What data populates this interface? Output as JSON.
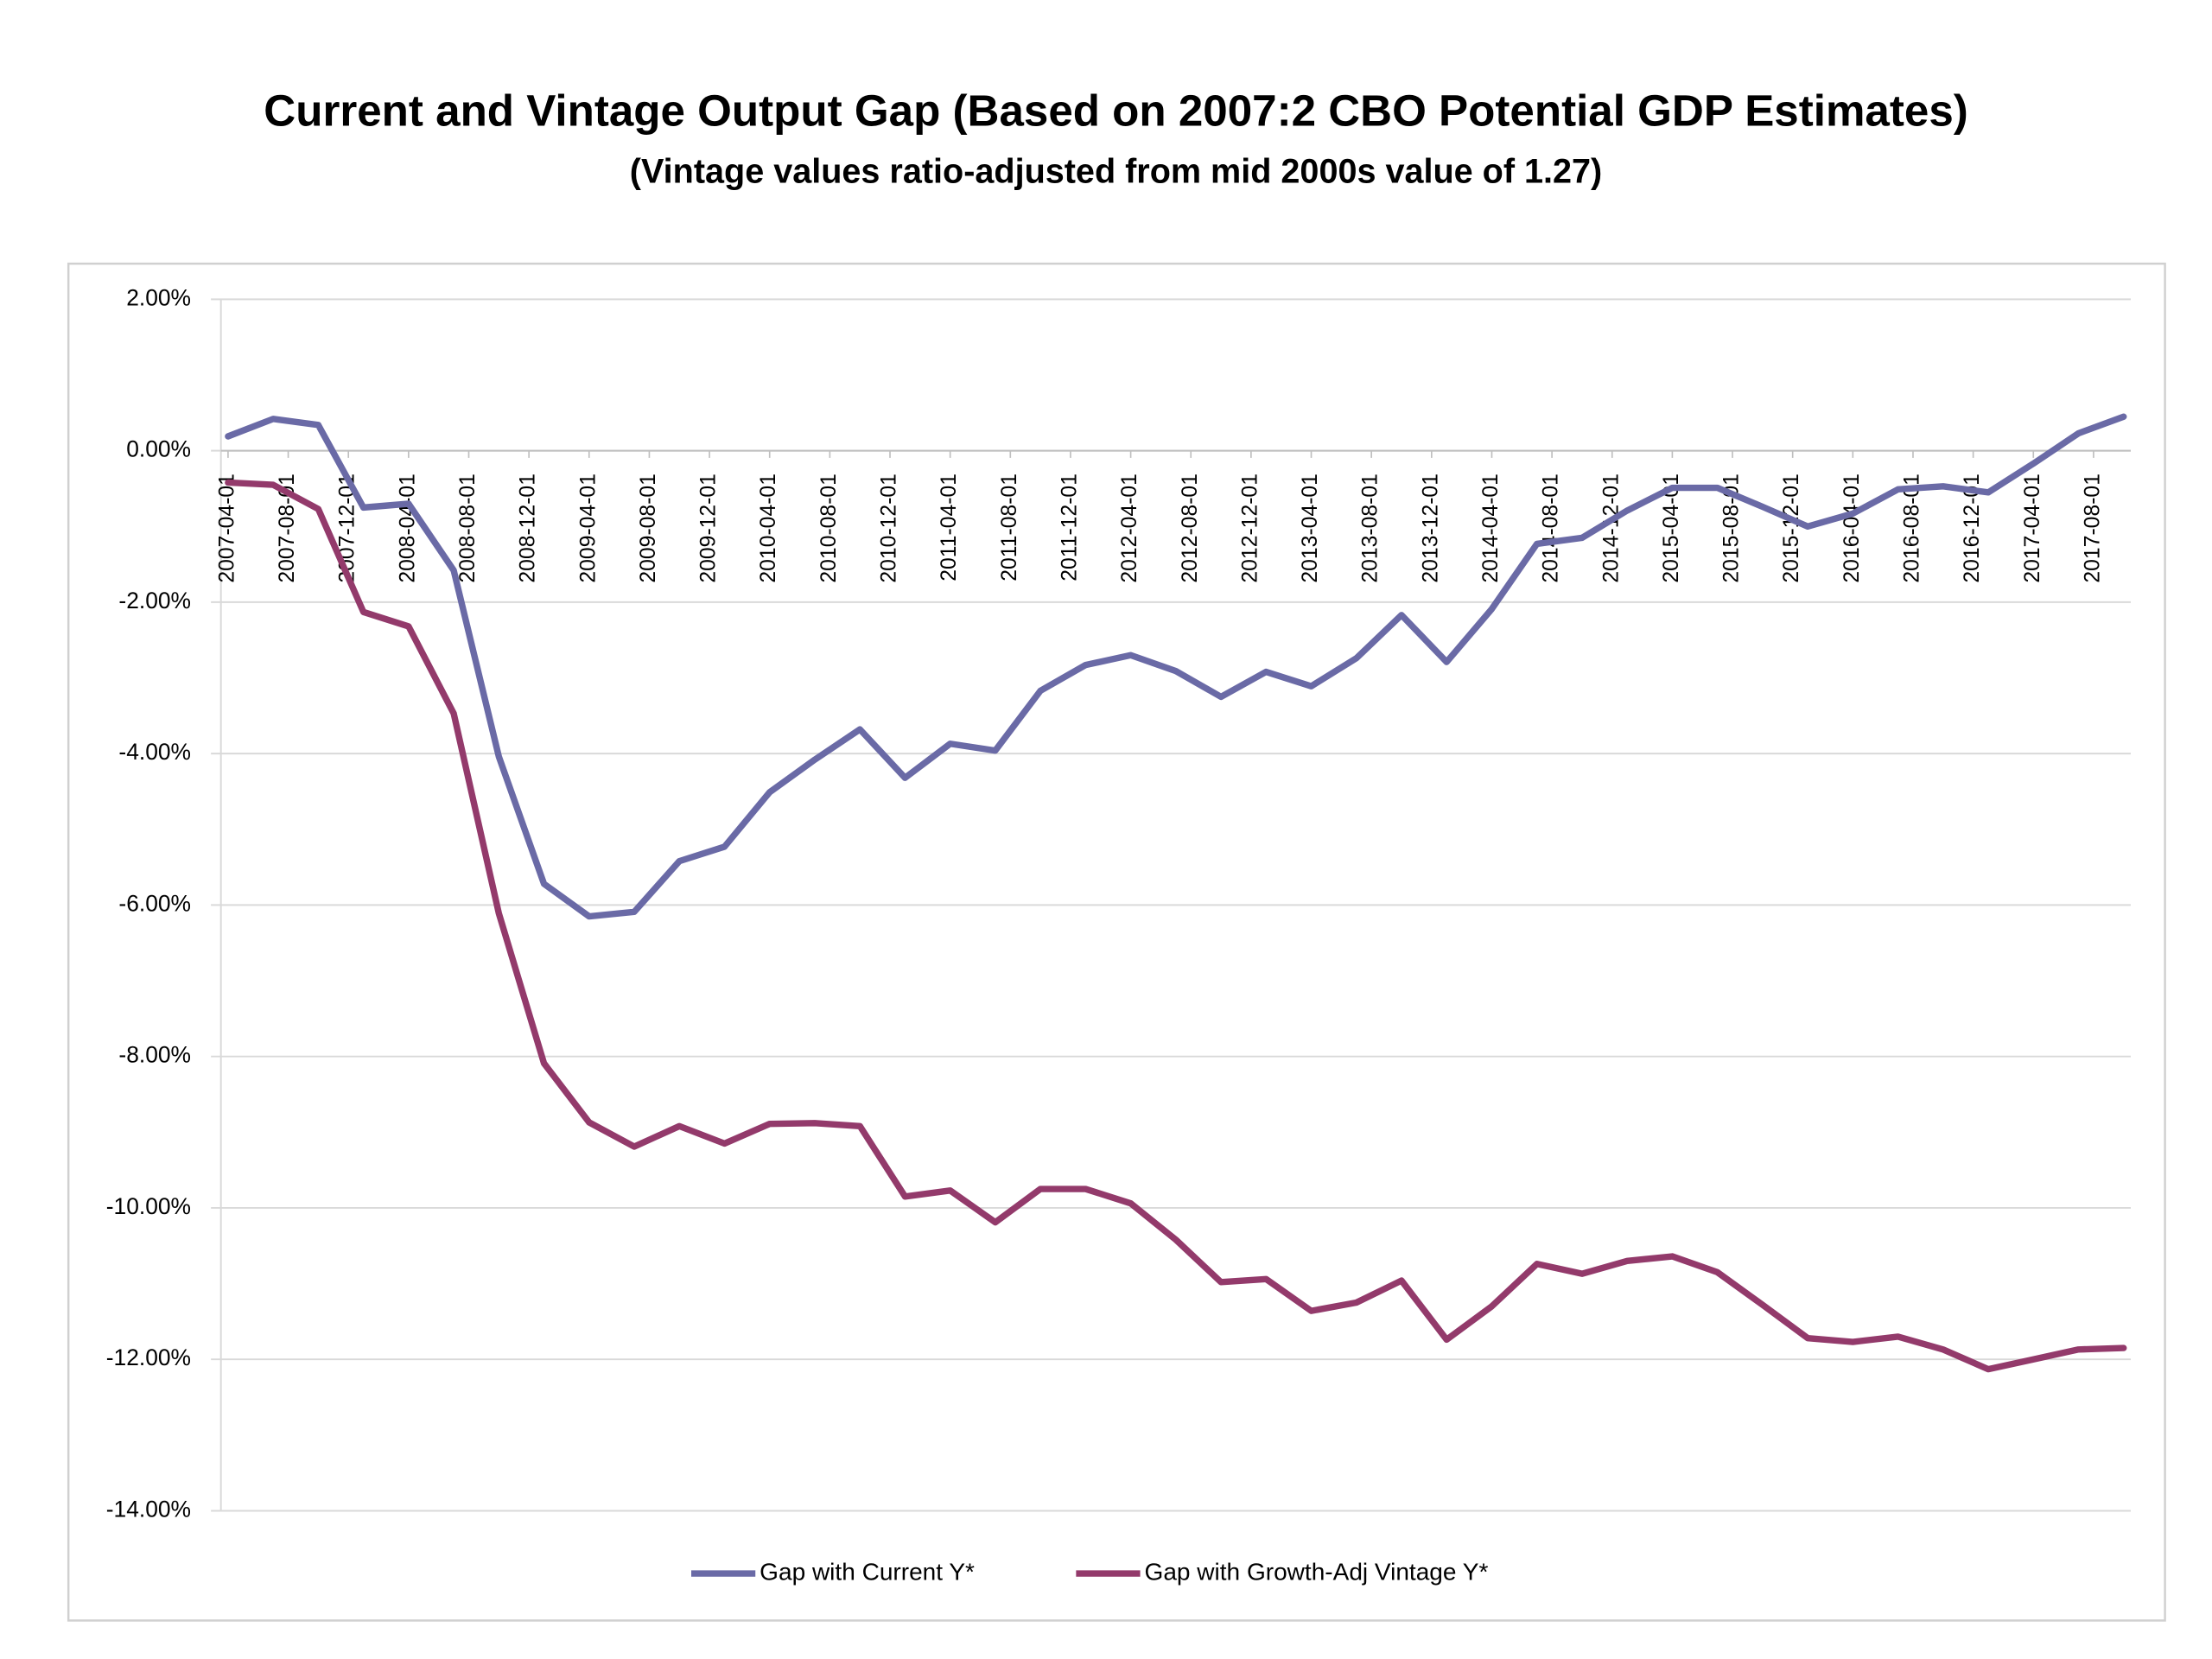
{
  "chart_data": {
    "type": "line",
    "title": "Current and Vintage Output Gap (Based on 2007:2 CBO Potential GDP Estimates)",
    "subtitle": "(Vintage values ratio-adjusted from mid 2000s value of 1.27)",
    "x": [
      "2007-04-01",
      "2007-07-01",
      "2007-10-01",
      "2008-01-01",
      "2008-04-01",
      "2008-07-01",
      "2008-10-01",
      "2009-01-01",
      "2009-04-01",
      "2009-07-01",
      "2009-10-01",
      "2010-01-01",
      "2010-04-01",
      "2010-07-01",
      "2010-10-01",
      "2011-01-01",
      "2011-04-01",
      "2011-07-01",
      "2011-10-01",
      "2012-01-01",
      "2012-04-01",
      "2012-07-01",
      "2012-10-01",
      "2013-01-01",
      "2013-04-01",
      "2013-07-01",
      "2013-10-01",
      "2014-01-01",
      "2014-04-01",
      "2014-07-01",
      "2014-10-01",
      "2015-01-01",
      "2015-04-01",
      "2015-07-01",
      "2015-10-01",
      "2016-01-01",
      "2016-04-01",
      "2016-07-01",
      "2016-10-01",
      "2017-01-01",
      "2017-04-01",
      "2017-07-01",
      "2017-10-01"
    ],
    "xlim": [
      "2007-04-01",
      "2017-10-01"
    ],
    "xticks": [
      "2007-04-01",
      "2007-08-01",
      "2007-12-01",
      "2008-04-01",
      "2008-08-01",
      "2008-12-01",
      "2009-04-01",
      "2009-08-01",
      "2009-12-01",
      "2010-04-01",
      "2010-08-01",
      "2010-12-01",
      "2011-04-01",
      "2011-08-01",
      "2011-12-01",
      "2012-04-01",
      "2012-08-01",
      "2012-12-01",
      "2013-04-01",
      "2013-08-01",
      "2013-12-01",
      "2014-04-01",
      "2014-08-01",
      "2014-12-01",
      "2015-04-01",
      "2015-08-01",
      "2015-12-01",
      "2016-04-01",
      "2016-08-01",
      "2016-12-01",
      "2017-04-01",
      "2017-08-01"
    ],
    "ylim": [
      -14,
      2
    ],
    "yticks": [
      {
        "value": 2,
        "label": "2.00%"
      },
      {
        "value": 0,
        "label": "0.00%"
      },
      {
        "value": -2,
        "label": "-2.00%"
      },
      {
        "value": -4,
        "label": "-4.00%"
      },
      {
        "value": -6,
        "label": "-6.00%"
      },
      {
        "value": -8,
        "label": "-8.00%"
      },
      {
        "value": -10,
        "label": "-10.00%"
      },
      {
        "value": -12,
        "label": "-12.00%"
      },
      {
        "value": -14,
        "label": "-14.00%"
      }
    ],
    "grid": true,
    "legend": "bottom",
    "series": [
      {
        "name": "Gap with Current Y*",
        "color": "#6a6aa6",
        "values": [
          0.19,
          0.42,
          0.34,
          -0.75,
          -0.7,
          -1.58,
          -4.04,
          -5.72,
          -6.15,
          -6.09,
          -5.42,
          -5.23,
          -4.51,
          -4.08,
          -3.68,
          -4.32,
          -3.87,
          -3.96,
          -3.17,
          -2.83,
          -2.7,
          -2.91,
          -3.25,
          -2.92,
          -3.11,
          -2.74,
          -2.17,
          -2.79,
          -2.09,
          -1.23,
          -1.15,
          -0.79,
          -0.49,
          -0.49,
          -0.74,
          -1.0,
          -0.83,
          -0.51,
          -0.47,
          -0.55,
          -0.17,
          0.23,
          0.45
        ]
      },
      {
        "name": "Gap with Growth-Adj Vintage Y*",
        "color": "#933a6b",
        "values": [
          -0.42,
          -0.45,
          -0.77,
          -2.13,
          -2.32,
          -3.47,
          -6.11,
          -8.09,
          -8.87,
          -9.19,
          -8.92,
          -9.15,
          -8.89,
          -8.88,
          -8.92,
          -9.85,
          -9.77,
          -10.19,
          -9.75,
          -9.75,
          -9.94,
          -10.42,
          -10.98,
          -10.94,
          -11.36,
          -11.25,
          -10.96,
          -11.74,
          -11.3,
          -10.74,
          -10.87,
          -10.7,
          -10.64,
          -10.85,
          -11.28,
          -11.72,
          -11.77,
          -11.7,
          -11.87,
          -12.13,
          -12.0,
          -11.87,
          -11.85
        ]
      }
    ]
  }
}
